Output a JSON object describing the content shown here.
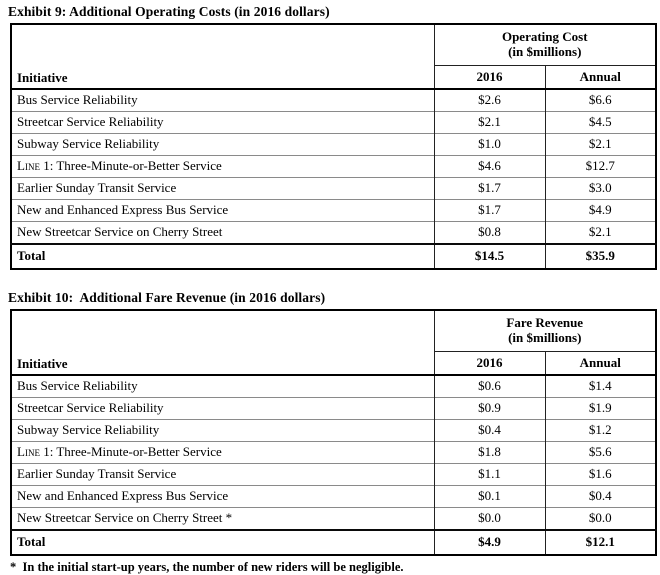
{
  "colors": {
    "background": "#ffffff",
    "text": "#000000",
    "grid_major": "#000000",
    "grid_minor": "#8a8a8a"
  },
  "exhibit9": {
    "title": "Exhibit 9: Additional Operating Costs (in 2016 dollars)",
    "table": {
      "group_header": "Operating Cost",
      "group_subheader": "(in $millions)",
      "columns": [
        "Initiative",
        "2016",
        "Annual"
      ],
      "rows": [
        {
          "label": "Bus Service Reliability",
          "v2016": "$2.6",
          "annual": "$6.6"
        },
        {
          "label": "Streetcar Service Reliability",
          "v2016": "$2.1",
          "annual": "$4.5"
        },
        {
          "label": "Subway Service Reliability",
          "v2016": "$1.0",
          "annual": "$2.1"
        },
        {
          "label": "Line 1: Three-Minute-or-Better Service",
          "smallcaps_first": true,
          "v2016": "$4.6",
          "annual": "$12.7"
        },
        {
          "label": "Earlier Sunday Transit Service",
          "v2016": "$1.7",
          "annual": "$3.0"
        },
        {
          "label": "New and Enhanced Express Bus Service",
          "v2016": "$1.7",
          "annual": "$4.9"
        },
        {
          "label": "New Streetcar Service on Cherry Street",
          "v2016": "$0.8",
          "annual": "$2.1"
        },
        {
          "label": "Total",
          "total": true,
          "v2016": "$14.5",
          "annual": "$35.9"
        }
      ]
    }
  },
  "exhibit10": {
    "title": "Exhibit 10:  Additional Fare Revenue (in 2016 dollars)",
    "table": {
      "group_header": "Fare Revenue",
      "group_subheader": "(in $millions)",
      "columns": [
        "Initiative",
        "2016",
        "Annual"
      ],
      "rows": [
        {
          "label": "Bus Service Reliability",
          "v2016": "$0.6",
          "annual": "$1.4"
        },
        {
          "label": "Streetcar Service Reliability",
          "v2016": "$0.9",
          "annual": "$1.9"
        },
        {
          "label": "Subway Service Reliability",
          "v2016": "$0.4",
          "annual": "$1.2"
        },
        {
          "label": "Line 1: Three-Minute-or-Better Service",
          "smallcaps_first": true,
          "v2016": "$1.8",
          "annual": "$5.6"
        },
        {
          "label": "Earlier Sunday Transit Service",
          "v2016": "$1.1",
          "annual": "$1.6"
        },
        {
          "label": "New and Enhanced Express Bus Service",
          "v2016": "$0.1",
          "annual": "$0.4"
        },
        {
          "label": "New Streetcar Service on Cherry Street *",
          "v2016": "$0.0",
          "annual": "$0.0"
        },
        {
          "label": "Total",
          "total": true,
          "v2016": "$4.9",
          "annual": "$12.1"
        }
      ]
    },
    "footnote": "*  In the initial start-up years, the number of new riders will be negligible."
  }
}
